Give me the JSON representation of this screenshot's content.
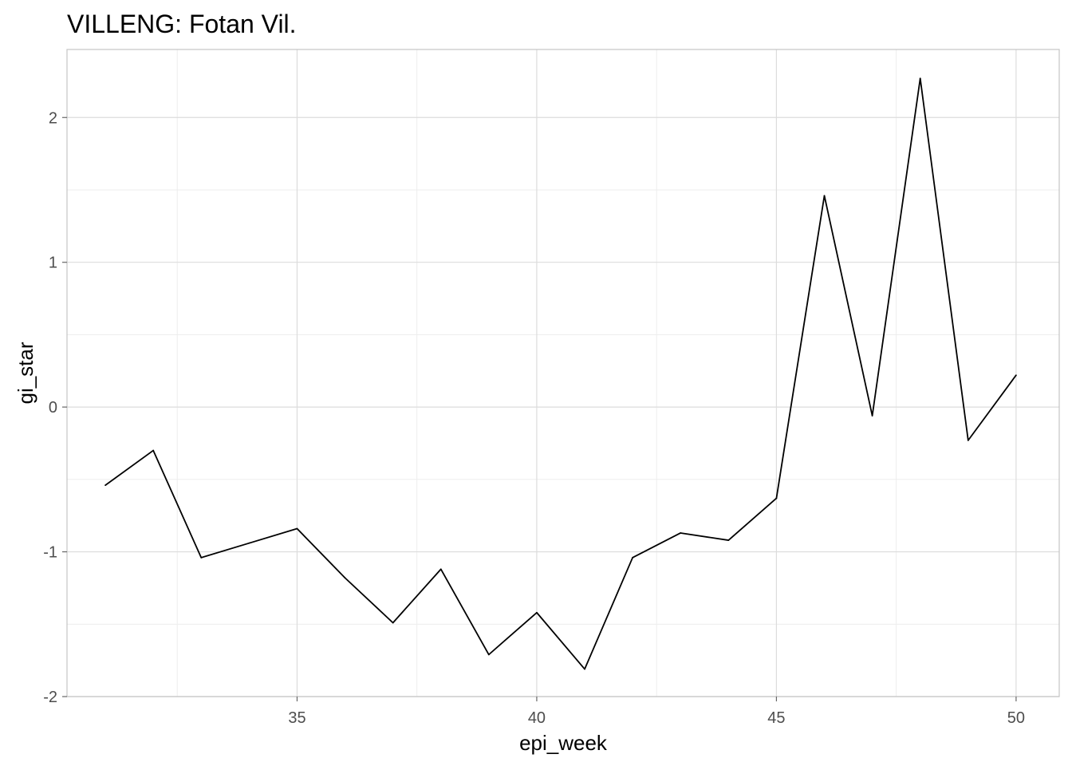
{
  "chart_data": {
    "type": "line",
    "title": "VILLENG: Fotan Vil.",
    "xlabel": "epi_week",
    "ylabel": "gi_star",
    "xlim": [
      30.2,
      50.9
    ],
    "ylim": [
      -2.0,
      2.47
    ],
    "x_ticks": [
      35,
      40,
      45,
      50
    ],
    "x_tick_labels": [
      "35",
      "40",
      "45",
      "50"
    ],
    "x_minor_ticks": [
      32.5,
      37.5,
      42.5,
      47.5
    ],
    "y_ticks": [
      -2,
      -1,
      0,
      1,
      2
    ],
    "y_tick_labels": [
      "-2",
      "-1",
      "0",
      "1",
      "2"
    ],
    "y_minor_ticks": [
      -1.5,
      -0.5,
      0.5,
      1.5
    ],
    "grid": true,
    "series": [
      {
        "x": [
          31,
          32,
          33,
          34,
          35,
          36,
          37,
          38,
          39,
          40,
          41,
          42,
          43,
          44,
          45,
          46,
          47,
          48,
          49,
          50
        ],
        "values": [
          -0.54,
          -0.3,
          -1.04,
          -0.94,
          -0.84,
          -1.18,
          -1.49,
          -1.12,
          -1.71,
          -1.42,
          -1.81,
          -1.04,
          -0.87,
          -0.92,
          -0.63,
          1.46,
          -0.06,
          2.27,
          -0.23,
          0.22
        ]
      }
    ]
  }
}
